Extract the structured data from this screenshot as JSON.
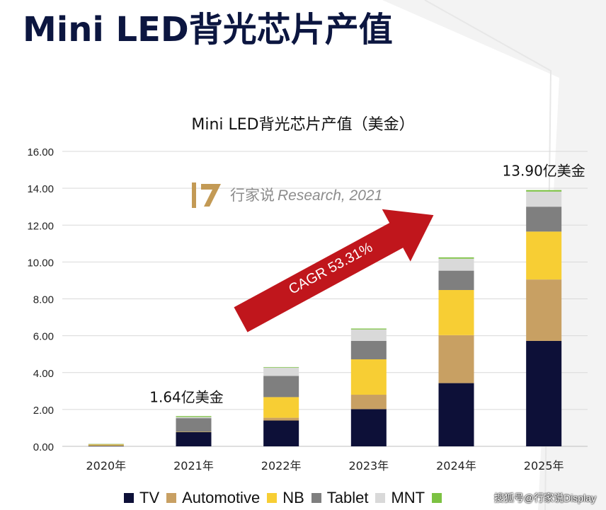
{
  "page": {
    "title": "Mini LED背光芯片产值"
  },
  "watermark": {
    "brand": "行家说",
    "text": "Research, 2021"
  },
  "arrow": {
    "label": "CAGR 53.31%",
    "color": "#c0161c"
  },
  "footer": {
    "credit": "搜狐号@行家说Display"
  },
  "chart_data": {
    "type": "bar",
    "stacked": true,
    "title": "Mini LED背光芯片产值（美金）",
    "categories": [
      "2020年",
      "2021年",
      "2022年",
      "2023年",
      "2024年",
      "2025年"
    ],
    "ylim": [
      0,
      16
    ],
    "yticks": [
      "0.00",
      "2.00",
      "4.00",
      "6.00",
      "8.00",
      "10.00",
      "12.00",
      "14.00",
      "16.00"
    ],
    "grid": true,
    "legend_position": "bottom",
    "series": [
      {
        "name": "TV",
        "color": "#0d1038",
        "values": [
          0.03,
          0.78,
          1.4,
          2.02,
          3.43,
          5.72
        ]
      },
      {
        "name": "Automotive",
        "color": "#c8a063",
        "values": [
          0.02,
          0.0,
          0.15,
          0.78,
          2.6,
          3.33
        ]
      },
      {
        "name": "NB",
        "color": "#f7ce34",
        "values": [
          0.05,
          0.02,
          1.12,
          1.92,
          2.45,
          2.6
        ]
      },
      {
        "name": "Tablet",
        "color": "#7f7f7f",
        "values": [
          0.02,
          0.73,
          1.15,
          1.0,
          1.05,
          1.35
        ]
      },
      {
        "name": "MNT",
        "color": "#d9d9d9",
        "values": [
          0.01,
          0.06,
          0.45,
          0.62,
          0.65,
          0.82
        ]
      },
      {
        "name": "",
        "color": "#7cc242",
        "values": [
          0.01,
          0.05,
          0.03,
          0.05,
          0.07,
          0.08
        ]
      }
    ],
    "annotations": [
      {
        "category": "2021年",
        "text": "1.64亿美金"
      },
      {
        "category": "2025年",
        "text": "13.90亿美金"
      }
    ]
  }
}
